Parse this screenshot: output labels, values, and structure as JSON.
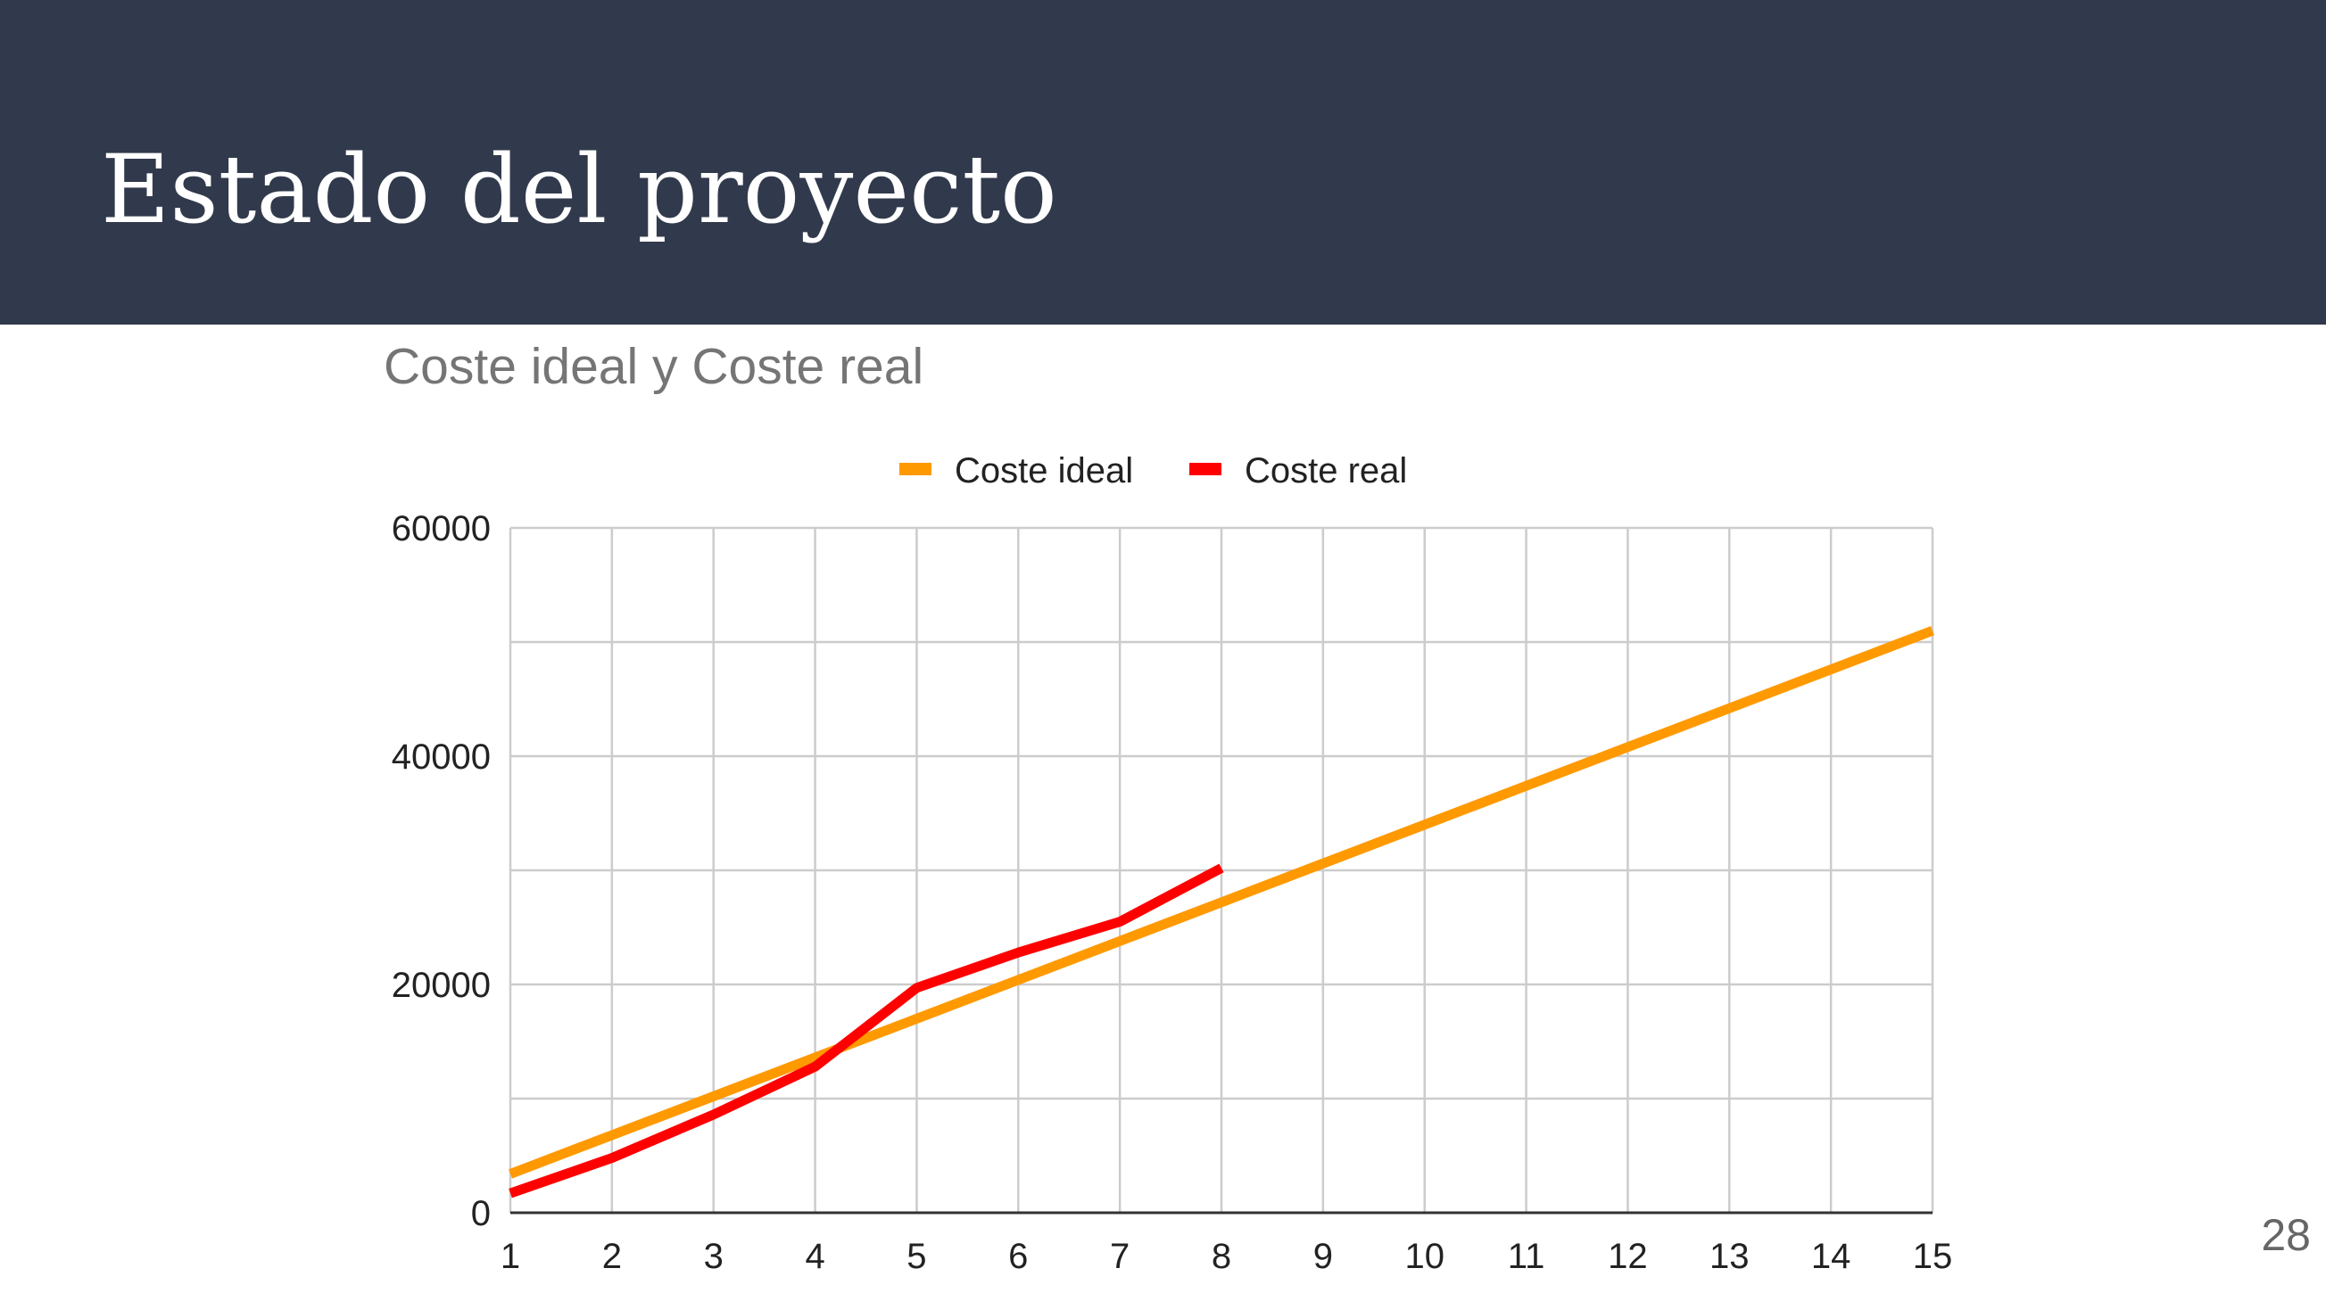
{
  "slide": {
    "title": "Estado del proyecto",
    "page_number": "28"
  },
  "colors": {
    "header_background": "#313a4c",
    "ideal_series": "#ff9900",
    "real_series": "#ff0000"
  },
  "chart_data": {
    "type": "line",
    "title": "Coste ideal y Coste real",
    "xlabel": "",
    "ylabel": "",
    "x": [
      1,
      2,
      3,
      4,
      5,
      6,
      7,
      8,
      9,
      10,
      11,
      12,
      13,
      14,
      15
    ],
    "x_tick_labels": [
      "1",
      "2",
      "3",
      "4",
      "5",
      "6",
      "7",
      "8",
      "9",
      "10",
      "11",
      "12",
      "13",
      "14",
      "15"
    ],
    "ylim": [
      0,
      60000
    ],
    "y_tick_labels": [
      "0",
      "20000",
      "40000",
      "60000"
    ],
    "y_ticks": [
      0,
      20000,
      40000,
      60000
    ],
    "y_minor_gridlines": [
      10000,
      30000,
      50000
    ],
    "grid": true,
    "legend_position": "top",
    "series": [
      {
        "name": "Coste ideal",
        "color": "#ff9900",
        "x": [
          1,
          2,
          3,
          4,
          5,
          6,
          7,
          8,
          9,
          10,
          11,
          12,
          13,
          14,
          15
        ],
        "values": [
          3400,
          6800,
          10200,
          13600,
          17000,
          20400,
          23800,
          27200,
          30600,
          34000,
          37400,
          40800,
          44200,
          47600,
          51000
        ]
      },
      {
        "name": "Coste real",
        "color": "#ff0000",
        "x": [
          1,
          2,
          3,
          4,
          5,
          6,
          7,
          8
        ],
        "values": [
          1700,
          4800,
          8600,
          12800,
          19700,
          22800,
          25500,
          30200
        ]
      }
    ]
  }
}
